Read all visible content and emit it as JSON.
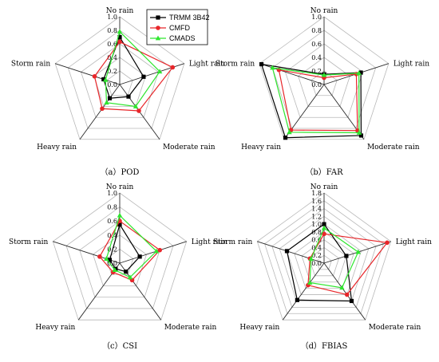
{
  "colors": {
    "TRMM 3B42": "#000000",
    "CMFD": "#e8262a",
    "CMADS": "#2ee62e",
    "grid": "#b8b8b8",
    "spoke": "#2a2a2a"
  },
  "legend": [
    "TRMM 3B42",
    "CMFD",
    "CMADS"
  ],
  "chart_data": [
    {
      "type": "radar",
      "caption": "（a）POD",
      "axes": [
        "No rain",
        "Light rain",
        "Moderate rain",
        "Heavy rain",
        "Storm rain"
      ],
      "rmax": 1.0,
      "ticks": [
        0.0,
        0.2,
        0.4,
        0.6,
        0.8,
        1.0
      ],
      "tick_labels": [
        "0.0",
        "0.2",
        "0.4",
        "0.6",
        "0.8",
        "1.0"
      ],
      "series": [
        {
          "name": "TRMM 3B42",
          "values": [
            0.7,
            0.37,
            0.22,
            0.25,
            0.25
          ]
        },
        {
          "name": "CMFD",
          "values": [
            0.63,
            0.82,
            0.48,
            0.44,
            0.39
          ]
        },
        {
          "name": "CMADS",
          "values": [
            0.78,
            0.62,
            0.4,
            0.33,
            0.22
          ]
        }
      ]
    },
    {
      "type": "radar",
      "caption": "（b）FAR",
      "axes": [
        "No rain",
        "Light rain",
        "Moderate rain",
        "Heavy rain",
        "Storm rain"
      ],
      "rmax": 1.0,
      "ticks": [
        0.0,
        0.2,
        0.4,
        0.6,
        0.8,
        1.0
      ],
      "tick_labels": [
        "0.0",
        "0.2",
        "0.4",
        "0.6",
        "0.8",
        "1.0"
      ],
      "series": [
        {
          "name": "TRMM 3B42",
          "values": [
            0.15,
            0.57,
            0.93,
            0.97,
            0.97
          ]
        },
        {
          "name": "CMFD",
          "values": [
            0.1,
            0.5,
            0.84,
            0.83,
            0.7
          ]
        },
        {
          "name": "CMADS",
          "values": [
            0.14,
            0.54,
            0.88,
            0.87,
            0.8
          ]
        }
      ]
    },
    {
      "type": "radar",
      "caption": "（c）CSI",
      "axes": [
        "No rain",
        "Light rain",
        "Moderate rain",
        "Heavy rain",
        "Storm rain"
      ],
      "rmax": 1.0,
      "ticks": [
        0.0,
        0.2,
        0.4,
        0.6,
        0.8,
        1.0
      ],
      "tick_labels": [
        "0.0",
        "0.2",
        "0.4",
        "0.6",
        "0.8",
        "1.0"
      ],
      "series": [
        {
          "name": "TRMM 3B42",
          "values": [
            0.55,
            0.3,
            0.15,
            0.1,
            0.15
          ]
        },
        {
          "name": "CMFD",
          "values": [
            0.6,
            0.6,
            0.3,
            0.16,
            0.3
          ]
        },
        {
          "name": "CMADS",
          "values": [
            0.68,
            0.55,
            0.25,
            0.12,
            0.2
          ]
        }
      ]
    },
    {
      "type": "radar",
      "caption": "（d）FBIAS",
      "axes": [
        "No rain",
        "Light rain",
        "Moderate rain",
        "Heavy rain",
        "Storm rain"
      ],
      "rmax": 1.8,
      "ticks": [
        0.0,
        0.2,
        0.4,
        0.6,
        0.8,
        1.0,
        1.2,
        1.4,
        1.6,
        1.8
      ],
      "tick_labels": [
        "0.0",
        "0.2",
        "0.4",
        "0.6",
        "0.8",
        "1.0",
        "1.2",
        "1.4",
        "1.6",
        "1.8"
      ],
      "series": [
        {
          "name": "TRMM 3B42",
          "values": [
            1.0,
            0.6,
            1.2,
            1.17,
            1.0
          ]
        },
        {
          "name": "CMFD",
          "values": [
            0.75,
            1.7,
            1.0,
            0.7,
            0.38
          ]
        },
        {
          "name": "CMADS",
          "values": [
            0.9,
            0.92,
            0.78,
            0.62,
            0.35
          ]
        }
      ]
    }
  ]
}
